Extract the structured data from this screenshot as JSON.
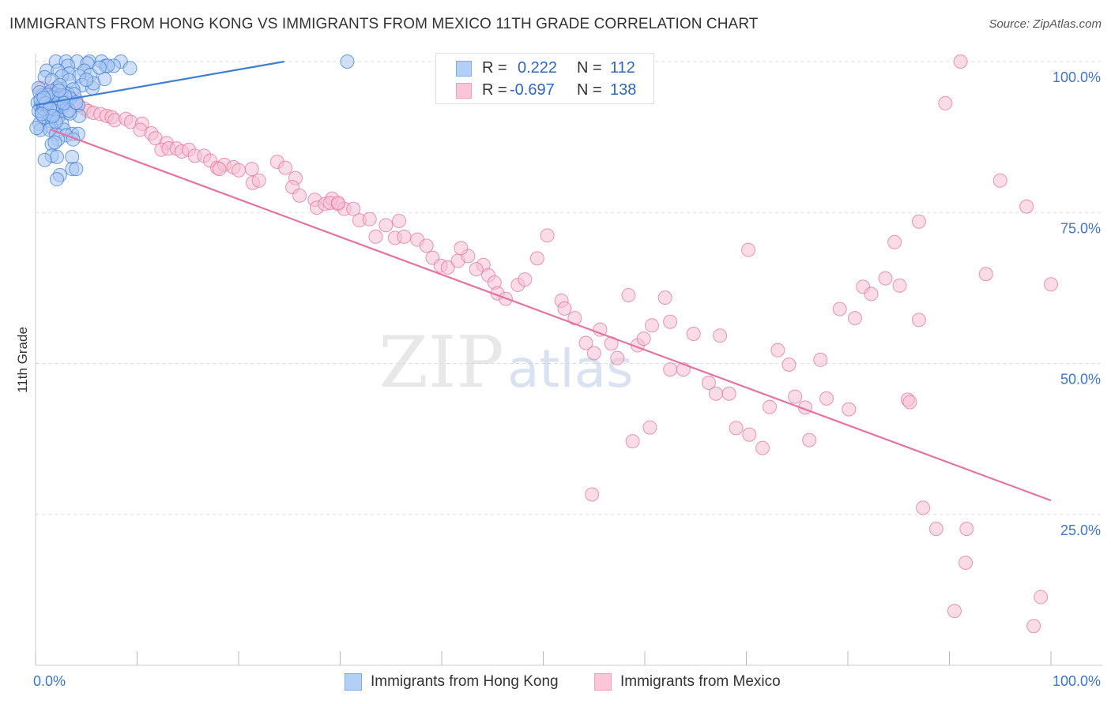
{
  "title": "IMMIGRANTS FROM HONG KONG VS IMMIGRANTS FROM MEXICO 11TH GRADE CORRELATION CHART",
  "source": "Source: ZipAtlas.com",
  "watermark": {
    "text_zip": "ZIP",
    "text_atlas": "atlas"
  },
  "legend": {
    "r_label": "R =",
    "n_label": "N =",
    "rows": [
      {
        "r": "0.222",
        "n": "112",
        "color": "#7eaaf0",
        "fill": "#b3cef7"
      },
      {
        "r": "-0.697",
        "n": "138",
        "color": "#f0a0bc",
        "fill": "#f8c6d6"
      }
    ]
  },
  "bottom_legend": [
    {
      "label": "Immigrants from Hong Kong",
      "color": "#7eaaf0",
      "fill": "#b3cef7"
    },
    {
      "label": "Immigrants from Mexico",
      "color": "#f0a0bc",
      "fill": "#f8c6d6"
    }
  ],
  "chart_data": {
    "type": "scatter",
    "title": "IMMIGRANTS FROM HONG KONG VS IMMIGRANTS FROM MEXICO 11TH GRADE CORRELATION CHART",
    "xlabel": "",
    "ylabel": "11th Grade",
    "xlim": [
      0,
      100
    ],
    "ylim": [
      0,
      100
    ],
    "x_tick_labels": [
      "0.0%",
      "100.0%"
    ],
    "y_tick_labels": [
      "100.0%",
      "75.0%",
      "50.0%",
      "25.0%"
    ],
    "y_ticks": [
      100,
      75,
      50,
      25
    ],
    "grid": true,
    "legend_position": "top-center",
    "series": [
      {
        "name": "Immigrants from Hong Kong",
        "color": "#3f7fd6",
        "fill": "#a9c6f3",
        "trend": {
          "x": [
            0,
            24.5
          ],
          "y": [
            92.8,
            100
          ]
        },
        "points": [
          [
            2.0,
            100
          ],
          [
            3.0,
            100
          ],
          [
            4.1,
            100
          ],
          [
            5.3,
            100
          ],
          [
            6.5,
            100
          ],
          [
            8.4,
            100
          ],
          [
            3.2,
            99.3
          ],
          [
            5.1,
            99.7
          ],
          [
            6.9,
            99.3
          ],
          [
            7.7,
            99.3
          ],
          [
            9.3,
            98.9
          ],
          [
            1.1,
            98.5
          ],
          [
            2.2,
            98.5
          ],
          [
            3.3,
            98.0
          ],
          [
            4.8,
            98.5
          ],
          [
            5.4,
            97.8
          ],
          [
            2.6,
            97.6
          ],
          [
            4.3,
            97.6
          ],
          [
            6.8,
            97.1
          ],
          [
            0.9,
            97.4
          ],
          [
            1.6,
            96.9
          ],
          [
            3.3,
            96.9
          ],
          [
            4.6,
            96.1
          ],
          [
            5.6,
            95.6
          ],
          [
            5.7,
            96.4
          ],
          [
            2.1,
            95.6
          ],
          [
            2.4,
            96.1
          ],
          [
            0.3,
            95.6
          ],
          [
            1.5,
            95.1
          ],
          [
            3.7,
            95.4
          ],
          [
            1.9,
            94.6
          ],
          [
            2.5,
            94.4
          ],
          [
            3.2,
            94.6
          ],
          [
            3.8,
            94.6
          ],
          [
            0.7,
            94.4
          ],
          [
            1.1,
            93.9
          ],
          [
            1.7,
            94.1
          ],
          [
            1.3,
            93.4
          ],
          [
            2.2,
            93.4
          ],
          [
            3.0,
            93.2
          ],
          [
            0.2,
            93.2
          ],
          [
            0.9,
            93.2
          ],
          [
            1.4,
            92.9
          ],
          [
            0.5,
            92.5
          ],
          [
            1.0,
            92.5
          ],
          [
            2.5,
            92.5
          ],
          [
            4.2,
            92.8
          ],
          [
            1.5,
            92.2
          ],
          [
            2.0,
            91.8
          ],
          [
            0.3,
            91.8
          ],
          [
            1.1,
            91.8
          ],
          [
            1.9,
            91.5
          ],
          [
            0.6,
            91.5
          ],
          [
            1.5,
            91.0
          ],
          [
            3.1,
            91.5
          ],
          [
            4.3,
            91.0
          ],
          [
            0.8,
            90.7
          ],
          [
            2.2,
            90.7
          ],
          [
            1.3,
            90.2
          ],
          [
            2.6,
            89.7
          ],
          [
            0.4,
            89.7
          ],
          [
            1.5,
            89.2
          ],
          [
            0.5,
            88.7
          ],
          [
            1.4,
            88.7
          ],
          [
            2.8,
            88.7
          ],
          [
            3.6,
            88.0
          ],
          [
            4.2,
            88.0
          ],
          [
            2.0,
            88.0
          ],
          [
            3.0,
            87.8
          ],
          [
            2.2,
            87.1
          ],
          [
            3.7,
            87.1
          ],
          [
            1.6,
            86.3
          ],
          [
            1.9,
            86.6
          ],
          [
            1.6,
            84.4
          ],
          [
            3.6,
            84.2
          ],
          [
            2.1,
            84.2
          ],
          [
            0.9,
            83.7
          ],
          [
            3.6,
            82.2
          ],
          [
            4.0,
            82.2
          ],
          [
            2.4,
            81.2
          ],
          [
            2.1,
            80.5
          ],
          [
            30.7,
            100
          ],
          [
            7.1,
            99.3
          ],
          [
            6.3,
            99.0
          ],
          [
            1.3,
            93.8
          ],
          [
            0.8,
            92.2
          ],
          [
            1.9,
            92.7
          ],
          [
            2.7,
            92.5
          ],
          [
            3.4,
            93.9
          ],
          [
            0.4,
            94.9
          ],
          [
            0.1,
            89.0
          ],
          [
            3.4,
            91.4
          ],
          [
            1.1,
            92.9
          ],
          [
            2.5,
            93.3
          ],
          [
            1.6,
            94.1
          ],
          [
            0.7,
            93.0
          ],
          [
            1.8,
            92.7
          ],
          [
            2.3,
            93.9
          ],
          [
            1.2,
            94.5
          ],
          [
            0.5,
            93.6
          ],
          [
            2.9,
            94.3
          ],
          [
            1.0,
            93.1
          ],
          [
            2.0,
            90.0
          ],
          [
            3.3,
            91.9
          ],
          [
            1.4,
            92.3
          ],
          [
            0.8,
            94.0
          ],
          [
            2.8,
            93.1
          ],
          [
            1.7,
            91.0
          ],
          [
            4.0,
            93.2
          ],
          [
            2.3,
            95.2
          ],
          [
            0.6,
            91.3
          ],
          [
            5.0,
            97.0
          ]
        ]
      },
      {
        "name": "Immigrants from Mexico",
        "color": "#e5739e",
        "fill": "#f6bfd2",
        "trend": {
          "x": [
            1.4,
            100
          ],
          "y": [
            88.8,
            27.3
          ]
        },
        "points": [
          [
            0.6,
            95.6
          ],
          [
            1.3,
            94.4
          ],
          [
            1.6,
            95.1
          ],
          [
            2.5,
            94.6
          ],
          [
            3.3,
            94.1
          ],
          [
            4.0,
            93.7
          ],
          [
            3.9,
            92.7
          ],
          [
            1.4,
            92.2
          ],
          [
            2.6,
            92.4
          ],
          [
            4.8,
            92.2
          ],
          [
            5.2,
            91.8
          ],
          [
            2.2,
            91.0
          ],
          [
            5.7,
            91.5
          ],
          [
            6.4,
            91.3
          ],
          [
            7.0,
            91.0
          ],
          [
            7.5,
            90.8
          ],
          [
            7.8,
            90.3
          ],
          [
            8.9,
            90.5
          ],
          [
            9.4,
            90.0
          ],
          [
            10.5,
            89.7
          ],
          [
            10.3,
            88.7
          ],
          [
            11.4,
            88.1
          ],
          [
            11.8,
            87.3
          ],
          [
            12.9,
            86.5
          ],
          [
            12.4,
            85.4
          ],
          [
            13.1,
            85.6
          ],
          [
            13.9,
            85.6
          ],
          [
            14.4,
            85.1
          ],
          [
            15.1,
            85.4
          ],
          [
            15.7,
            84.4
          ],
          [
            16.6,
            84.4
          ],
          [
            17.2,
            83.6
          ],
          [
            17.9,
            82.4
          ],
          [
            18.6,
            82.9
          ],
          [
            19.5,
            82.5
          ],
          [
            20.0,
            82.0
          ],
          [
            21.3,
            82.2
          ],
          [
            21.4,
            79.9
          ],
          [
            22.0,
            80.3
          ],
          [
            18.1,
            82.2
          ],
          [
            23.8,
            83.4
          ],
          [
            24.6,
            82.4
          ],
          [
            25.6,
            80.7
          ],
          [
            25.3,
            79.2
          ],
          [
            26.0,
            77.8
          ],
          [
            27.5,
            77.1
          ],
          [
            27.7,
            75.8
          ],
          [
            28.5,
            76.4
          ],
          [
            29.2,
            77.3
          ],
          [
            29.0,
            76.6
          ],
          [
            29.8,
            76.4
          ],
          [
            30.4,
            75.6
          ],
          [
            31.3,
            75.6
          ],
          [
            31.9,
            73.7
          ],
          [
            32.9,
            73.9
          ],
          [
            34.5,
            72.9
          ],
          [
            35.8,
            73.6
          ],
          [
            35.4,
            70.8
          ],
          [
            33.5,
            71.0
          ],
          [
            36.3,
            71.0
          ],
          [
            37.6,
            70.5
          ],
          [
            38.5,
            69.5
          ],
          [
            39.1,
            67.5
          ],
          [
            39.9,
            66.2
          ],
          [
            40.6,
            65.9
          ],
          [
            41.6,
            67.0
          ],
          [
            42.6,
            67.8
          ],
          [
            44.1,
            66.3
          ],
          [
            44.6,
            64.6
          ],
          [
            45.2,
            63.4
          ],
          [
            45.5,
            61.6
          ],
          [
            46.3,
            60.7
          ],
          [
            47.5,
            63.0
          ],
          [
            48.2,
            63.9
          ],
          [
            49.4,
            67.4
          ],
          [
            50.4,
            71.2
          ],
          [
            51.8,
            60.4
          ],
          [
            52.1,
            59.1
          ],
          [
            53.1,
            57.5
          ],
          [
            54.2,
            53.4
          ],
          [
            55.0,
            51.7
          ],
          [
            55.6,
            55.6
          ],
          [
            56.7,
            53.3
          ],
          [
            57.3,
            50.9
          ],
          [
            58.4,
            61.3
          ],
          [
            59.3,
            53.0
          ],
          [
            59.9,
            54.1
          ],
          [
            60.7,
            56.3
          ],
          [
            62.0,
            60.9
          ],
          [
            62.5,
            56.9
          ],
          [
            63.8,
            49.0
          ],
          [
            64.8,
            54.9
          ],
          [
            66.3,
            46.8
          ],
          [
            67.0,
            45.0
          ],
          [
            68.3,
            45.0
          ],
          [
            69.0,
            39.3
          ],
          [
            70.3,
            38.2
          ],
          [
            71.6,
            36.0
          ],
          [
            72.3,
            42.8
          ],
          [
            73.1,
            52.2
          ],
          [
            74.2,
            49.8
          ],
          [
            74.8,
            44.5
          ],
          [
            75.8,
            42.7
          ],
          [
            76.2,
            37.3
          ],
          [
            77.3,
            50.6
          ],
          [
            77.9,
            44.2
          ],
          [
            79.2,
            59.0
          ],
          [
            80.1,
            42.4
          ],
          [
            80.7,
            57.5
          ],
          [
            81.5,
            62.7
          ],
          [
            82.3,
            61.5
          ],
          [
            83.7,
            64.1
          ],
          [
            84.6,
            70.1
          ],
          [
            85.1,
            62.9
          ],
          [
            85.9,
            44.0
          ],
          [
            86.1,
            43.6
          ],
          [
            87.0,
            57.2
          ],
          [
            87.4,
            26.1
          ],
          [
            88.7,
            22.6
          ],
          [
            89.6,
            93.1
          ],
          [
            91.1,
            100
          ],
          [
            93.6,
            64.8
          ],
          [
            95.0,
            80.3
          ],
          [
            97.6,
            76.0
          ],
          [
            98.3,
            6.5
          ],
          [
            99.0,
            11.3
          ],
          [
            100,
            63.1
          ],
          [
            91.7,
            22.6
          ],
          [
            91.6,
            17.0
          ],
          [
            90.5,
            9.0
          ],
          [
            87.0,
            73.5
          ],
          [
            70.2,
            68.8
          ],
          [
            67.4,
            54.6
          ],
          [
            62.5,
            49.0
          ],
          [
            60.5,
            39.4
          ],
          [
            58.8,
            37.1
          ],
          [
            54.8,
            28.3
          ],
          [
            43.4,
            65.6
          ],
          [
            41.9,
            69.1
          ],
          [
            29.8,
            76.6
          ]
        ]
      }
    ]
  }
}
